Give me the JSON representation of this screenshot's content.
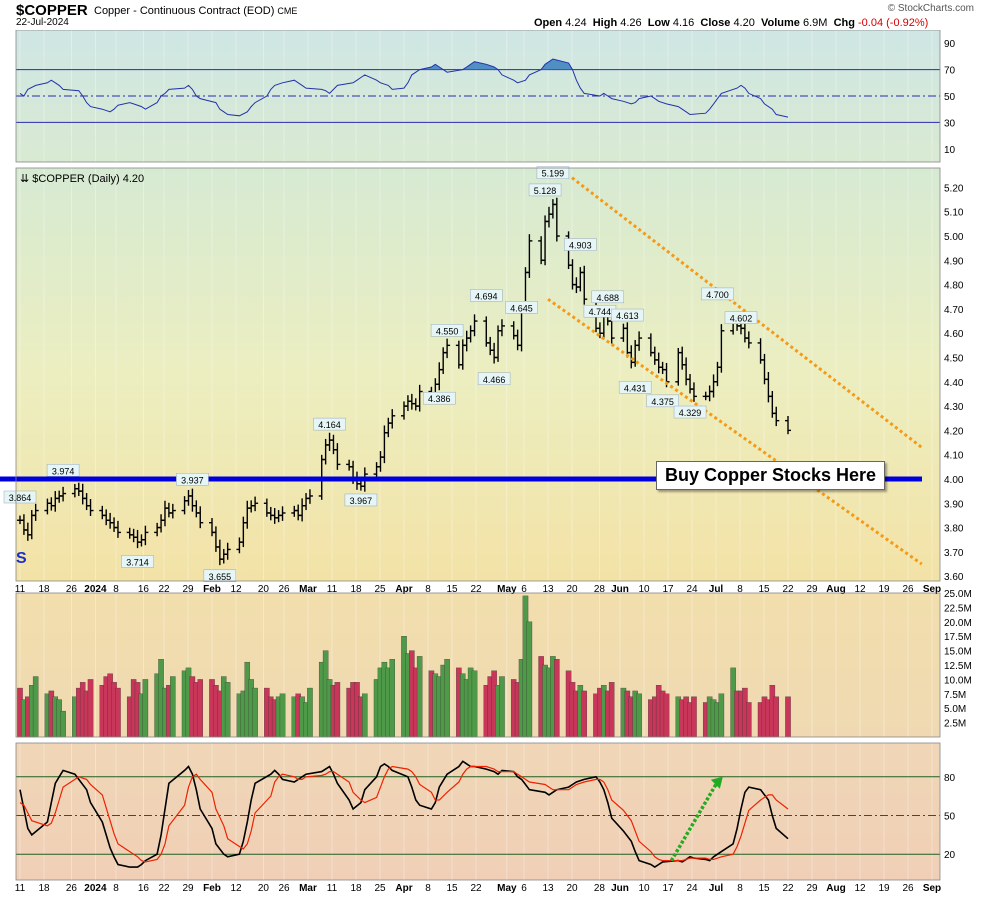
{
  "header": {
    "symbol": "$COPPER",
    "description": "Copper - Continuous Contract (EOD)",
    "exchange": "CME",
    "date": "22-Jul-2024",
    "open_label": "Open",
    "open": "4.24",
    "high_label": "High",
    "high": "4.26",
    "low_label": "Low",
    "low": "4.16",
    "close_label": "Close",
    "close": "4.20",
    "volume_label": "Volume",
    "volume": "6.9M",
    "chg_label": "Chg",
    "chg": "-0.04 (-0.92%)",
    "credit": "© StockCharts.com"
  },
  "annotation": {
    "buy_text": "Buy Copper Stocks Here",
    "s_marker": "S"
  },
  "colors": {
    "support_line": "#0000dd",
    "channel": "#f59a16",
    "arrow": "#22aa22",
    "vol_up": "#4f9a48",
    "vol_down": "#c8375a",
    "stoch_k": "#000000",
    "stoch_d": "#ee2200"
  },
  "chart_data": [
    {
      "type": "line",
      "indicator": "RSI",
      "ylim": [
        0,
        100
      ],
      "y_ticks": [
        "90",
        "70",
        "50",
        "30",
        "10"
      ],
      "levels": [
        70,
        50,
        30
      ],
      "x_start": "2023-12-11",
      "values": [
        52,
        50,
        55,
        58,
        60,
        62,
        60,
        58,
        55,
        54,
        50,
        45,
        42,
        40,
        38,
        40,
        43,
        45,
        44,
        42,
        40,
        45,
        50,
        52,
        55,
        56,
        58,
        55,
        50,
        48,
        45,
        40,
        38,
        36,
        35,
        38,
        42,
        45,
        50,
        55,
        58,
        60,
        62,
        60,
        58,
        56,
        55,
        54,
        52,
        55,
        58,
        60,
        62,
        64,
        66,
        62,
        60,
        58,
        55,
        56,
        60,
        66,
        70,
        72,
        74,
        72,
        70,
        68,
        70,
        72,
        74,
        76,
        74,
        72,
        70,
        66,
        62,
        60,
        62,
        66,
        70,
        74,
        76,
        78,
        75,
        70,
        62,
        56,
        52,
        50,
        52,
        50,
        48,
        46,
        44,
        45,
        48,
        50,
        48,
        46,
        44,
        42,
        40,
        38,
        36,
        37,
        40,
        44,
        48,
        52,
        56,
        58,
        56,
        52,
        48,
        44,
        40,
        36,
        34
      ]
    },
    {
      "type": "ohlc",
      "title": "$COPPER (Daily) 4.20",
      "ylim": [
        3.58,
        5.28
      ],
      "y_ticks": [
        "5.20",
        "5.10",
        "5.00",
        "4.90",
        "4.80",
        "4.70",
        "4.60",
        "4.50",
        "4.40",
        "4.30",
        "4.20",
        "4.10",
        "4.00",
        "3.90",
        "3.80",
        "3.70",
        "3.60"
      ],
      "x_tick_labels": [
        "11",
        "18",
        "26",
        "2024",
        "8",
        "16",
        "22",
        "29",
        "Feb",
        "12",
        "20",
        "26",
        "Mar",
        "11",
        "18",
        "25",
        "Apr",
        "8",
        "15",
        "22",
        "May",
        "6",
        "13",
        "20",
        "28",
        "Jun",
        "10",
        "17",
        "24",
        "Jul",
        "8",
        "15",
        "22",
        "29",
        "Aug",
        "12",
        "19",
        "26",
        "Sep"
      ],
      "x_start": "2023-12-11",
      "closes": [
        3.83,
        3.79,
        3.77,
        3.85,
        3.87,
        3.9,
        3.89,
        3.92,
        3.93,
        3.94,
        3.96,
        3.95,
        3.92,
        3.89,
        3.87,
        3.85,
        3.83,
        3.82,
        3.8,
        3.78,
        3.77,
        3.76,
        3.74,
        3.75,
        3.78,
        3.8,
        3.83,
        3.88,
        3.86,
        3.87,
        3.91,
        3.93,
        3.89,
        3.86,
        3.82,
        3.78,
        3.72,
        3.67,
        3.69,
        3.71,
        3.74,
        3.82,
        3.88,
        3.89,
        3.9,
        3.86,
        3.85,
        3.84,
        3.85,
        3.86,
        3.87,
        3.85,
        3.89,
        3.92,
        3.93,
        4.08,
        4.14,
        4.16,
        4.12,
        4.06,
        4.05,
        4.0,
        3.98,
        3.97,
        4.02,
        4.05,
        4.09,
        4.19,
        4.23,
        4.26,
        4.3,
        4.32,
        4.31,
        4.3,
        4.36,
        4.33,
        4.39,
        4.45,
        4.52,
        4.55,
        4.47,
        4.55,
        4.58,
        4.61,
        4.65,
        4.56,
        4.53,
        4.5,
        4.61,
        4.63,
        4.59,
        4.55,
        4.7,
        4.85,
        4.98,
        4.9,
        5.06,
        5.09,
        5.13,
        5.0,
        4.88,
        4.8,
        4.79,
        4.85,
        4.74,
        4.62,
        4.6,
        4.67,
        4.65,
        4.58,
        4.62,
        4.52,
        4.48,
        4.55,
        4.58,
        4.52,
        4.49,
        4.46,
        4.45,
        4.4,
        4.52,
        4.47,
        4.41,
        4.37,
        4.34,
        4.34,
        4.36,
        4.4,
        4.46,
        4.61,
        4.65,
        4.63,
        4.62,
        4.58,
        4.56,
        4.49,
        4.41,
        4.34,
        4.27,
        4.24,
        4.2
      ],
      "labels": [
        {
          "text": "3.864"
        },
        {
          "text": "3.974"
        },
        {
          "text": "3.714"
        },
        {
          "text": "3.937"
        },
        {
          "text": "3.655"
        },
        {
          "text": "4.164"
        },
        {
          "text": "3.967"
        },
        {
          "text": "4.386"
        },
        {
          "text": "4.550"
        },
        {
          "text": "4.694"
        },
        {
          "text": "4.466"
        },
        {
          "text": "4.645"
        },
        {
          "text": "5.128"
        },
        {
          "text": "5.199"
        },
        {
          "text": "4.903"
        },
        {
          "text": "4.744"
        },
        {
          "text": "4.688"
        },
        {
          "text": "4.613"
        },
        {
          "text": "4.431"
        },
        {
          "text": "4.375"
        },
        {
          "text": "4.329"
        },
        {
          "text": "4.700"
        },
        {
          "text": "4.602"
        }
      ],
      "support_level": 4.0,
      "channel_upper": [
        [
          "2024-05-20",
          5.24
        ],
        [
          "2024-08-30",
          4.13
        ]
      ],
      "channel_lower": [
        [
          "2024-05-13",
          4.74
        ],
        [
          "2024-08-30",
          3.65
        ]
      ]
    },
    {
      "type": "bar",
      "indicator": "Volume",
      "y_ticks": [
        "25.0M",
        "22.5M",
        "20.0M",
        "17.5M",
        "15.0M",
        "12.5M",
        "10.0M",
        "7.5M",
        "5.0M",
        "2.5M"
      ],
      "ylim": [
        0,
        25000000
      ],
      "x_start": "2023-12-11",
      "values_m": [
        8.5,
        6.5,
        7.0,
        9.0,
        10.5,
        7.5,
        8.0,
        7.0,
        6.5,
        4.5,
        7.0,
        8.5,
        9.5,
        8.0,
        10.0,
        9.0,
        10.5,
        11.0,
        9.5,
        8.5,
        7.0,
        10.0,
        9.5,
        7.5,
        10.0,
        11.0,
        13.5,
        8.5,
        9.0,
        10.5,
        11.5,
        12.0,
        10.5,
        9.5,
        10.0,
        10.0,
        9.0,
        8.0,
        10.5,
        9.5,
        7.5,
        8.0,
        13.0,
        10.0,
        8.5,
        8.5,
        7.0,
        6.5,
        7.0,
        7.5,
        7.0,
        7.5,
        7.0,
        6.0,
        8.5,
        13.0,
        15.0,
        10.0,
        9.0,
        9.5,
        8.5,
        9.5,
        9.5,
        7.0,
        7.5,
        10.0,
        12.0,
        13.0,
        12.0,
        13.5,
        17.5,
        14.5,
        15.0,
        12.0,
        14.0,
        11.5,
        11.0,
        10.5,
        12.5,
        13.5,
        12.0,
        11.0,
        10.0,
        12.0,
        11.5,
        9.0,
        10.5,
        11.5,
        9.0,
        10.5,
        10.0,
        9.5,
        13.5,
        24.5,
        20.0,
        14.0,
        12.5,
        12.0,
        14.0,
        13.5,
        11.5,
        9.5,
        8.0,
        9.0,
        8.0,
        7.5,
        8.5,
        9.0,
        8.0,
        9.5,
        8.5,
        8.0,
        7.0,
        8.0,
        7.5,
        6.5,
        7.0,
        9.0,
        8.0,
        7.5,
        7.0,
        6.5,
        7.0,
        6.0,
        7.0,
        6.0,
        7.0,
        6.5,
        6.0,
        7.5,
        12.0,
        8.0,
        8.0,
        8.5,
        6.0,
        6.0,
        7.0,
        6.5,
        9.0,
        7.0,
        7.0
      ],
      "up_flags": [
        0,
        1,
        0,
        1,
        1,
        1,
        0,
        1,
        1,
        1,
        1,
        0,
        0,
        0,
        0,
        0,
        0,
        0,
        0,
        0,
        0,
        0,
        0,
        1,
        1,
        1,
        1,
        1,
        0,
        1,
        1,
        1,
        0,
        0,
        0,
        0,
        0,
        0,
        1,
        1,
        1,
        1,
        1,
        1,
        1,
        0,
        0,
        0,
        1,
        1,
        1,
        0,
        1,
        1,
        1,
        1,
        1,
        1,
        0,
        0,
        0,
        0,
        0,
        0,
        1,
        1,
        1,
        1,
        1,
        1,
        1,
        1,
        0,
        0,
        1,
        0,
        1,
        1,
        1,
        1,
        0,
        1,
        1,
        1,
        1,
        0,
        0,
        0,
        1,
        1,
        0,
        0,
        1,
        1,
        1,
        0,
        1,
        1,
        1,
        0,
        0,
        0,
        0,
        1,
        0,
        0,
        0,
        1,
        0,
        0,
        1,
        0,
        0,
        1,
        1,
        0,
        0,
        0,
        0,
        0,
        1,
        0,
        0,
        0,
        0,
        0,
        1,
        1,
        1,
        1,
        1,
        0,
        0,
        0,
        0,
        0,
        0,
        0,
        0,
        0,
        0
      ]
    },
    {
      "type": "line",
      "indicator": "Stochastic",
      "ylim": [
        0,
        100
      ],
      "y_ticks": [
        "80",
        "50",
        "20"
      ],
      "levels": [
        80,
        50,
        20
      ],
      "x_start": "2023-12-11",
      "series": [
        {
          "values": [
            70,
            55,
            40,
            35,
            45,
            60,
            75,
            80,
            85,
            82,
            78,
            70,
            60,
            45,
            35,
            25,
            18,
            12,
            10,
            10,
            12,
            15,
            20,
            35,
            55,
            75,
            85,
            88,
            82,
            70,
            55,
            40,
            28,
            20,
            18,
            20,
            30,
            45,
            62,
            75,
            82,
            85,
            82,
            78,
            76,
            78,
            80,
            82,
            84,
            86,
            88,
            82,
            75,
            62,
            55,
            60,
            70,
            80,
            88,
            90,
            88,
            85,
            80,
            72,
            62,
            58,
            55,
            60,
            72,
            82,
            88,
            92,
            90,
            88,
            88,
            86,
            84,
            82,
            85,
            84,
            80,
            78,
            74,
            70,
            68,
            66,
            68,
            70,
            72,
            74,
            76,
            78,
            80,
            76,
            70,
            60,
            48,
            38,
            30,
            22,
            15,
            12,
            10,
            12,
            14,
            15,
            14,
            16,
            18,
            17,
            16,
            15,
            18,
            22,
            28,
            40,
            55,
            68,
            72,
            70,
            62,
            50,
            40,
            32
          ]
        },
        {
          "values": [
            60,
            58,
            52,
            46,
            42,
            44,
            52,
            62,
            72,
            78,
            80,
            78,
            74,
            66,
            56,
            46,
            36,
            28,
            22,
            18,
            15,
            14,
            16,
            20,
            28,
            42,
            58,
            72,
            80,
            82,
            78,
            68,
            55,
            42,
            32,
            26,
            24,
            28,
            38,
            52,
            65,
            76,
            80,
            82,
            80,
            78,
            78,
            80,
            81,
            82,
            84,
            84,
            82,
            76,
            68,
            62,
            60,
            64,
            72,
            80,
            86,
            88,
            86,
            84,
            80,
            74,
            68,
            62,
            62,
            68,
            76,
            82,
            86,
            88,
            88,
            88,
            86,
            84,
            84,
            84,
            82,
            80,
            78,
            76,
            74,
            72,
            70,
            70,
            70,
            72,
            74,
            76,
            78,
            78,
            76,
            70,
            62,
            54,
            46,
            38,
            30,
            22,
            18,
            16,
            15,
            15,
            15,
            16,
            17,
            17,
            17,
            16,
            16,
            18,
            20,
            26,
            34,
            44,
            54,
            62,
            66,
            66,
            62,
            55
          ]
        }
      ]
    }
  ]
}
